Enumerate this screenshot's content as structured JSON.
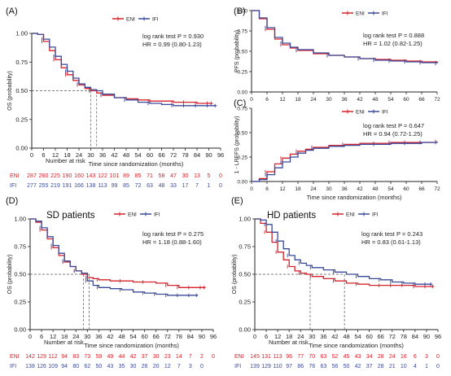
{
  "colors": {
    "eni": "#d6222b",
    "ifi": "#3a4a9b",
    "axis": "#222222",
    "ref": "#555555"
  },
  "chart_data": [
    {
      "id": "A",
      "panel_label": "(A)",
      "type": "line",
      "title": "",
      "xlabel": "Time since randomization (months)",
      "ylabel": "OS (probability)",
      "xlim": [
        0,
        96
      ],
      "ylim": [
        0,
        1
      ],
      "xticks": [
        "0",
        "6",
        "12",
        "18",
        "24",
        "30",
        "36",
        "42",
        "48",
        "54",
        "60",
        "66",
        "72",
        "78",
        "84",
        "90",
        "96"
      ],
      "yticks": [
        "0.00",
        "0.25",
        "0.50",
        "0.75",
        "1.00"
      ],
      "legend": [
        "ENI",
        "IFI"
      ],
      "legend_position": "top-right",
      "annotation": [
        "log rank test P = 0.930",
        "HR = 0.99 (0.80-1.23)"
      ],
      "medians": [
        30,
        33
      ],
      "risk_table": {
        "title": "Number at risk",
        "rows": [
          {
            "label": "ENI",
            "values": [
              "287",
              "260",
              "225",
              "190",
              "160",
              "143",
              "122",
              "101",
              "89",
              "85",
              "71",
              "58",
              "47",
              "30",
              "13",
              "5",
              "0"
            ]
          },
          {
            "label": "IFI",
            "values": [
              "277",
              "255",
              "219",
              "191",
              "166",
              "138",
              "113",
              "99",
              "85",
              "72",
              "63",
              "48",
              "33",
              "17",
              "7",
              "1",
              "0"
            ]
          }
        ]
      },
      "series": [
        {
          "name": "ENI",
          "x": [
            0,
            3,
            6,
            9,
            12,
            15,
            18,
            21,
            24,
            27,
            30,
            33,
            36,
            42,
            48,
            54,
            60,
            66,
            72,
            78,
            84,
            90,
            92
          ],
          "y": [
            1.0,
            0.99,
            0.93,
            0.85,
            0.77,
            0.7,
            0.64,
            0.59,
            0.55,
            0.52,
            0.5,
            0.48,
            0.46,
            0.44,
            0.43,
            0.42,
            0.41,
            0.41,
            0.4,
            0.4,
            0.39,
            0.39,
            0.39
          ]
        },
        {
          "name": "IFI",
          "x": [
            0,
            3,
            6,
            9,
            12,
            15,
            18,
            21,
            24,
            27,
            30,
            33,
            36,
            42,
            48,
            54,
            60,
            66,
            72,
            78,
            84,
            90,
            94
          ],
          "y": [
            1.0,
            0.99,
            0.95,
            0.88,
            0.8,
            0.73,
            0.67,
            0.61,
            0.56,
            0.53,
            0.51,
            0.5,
            0.47,
            0.44,
            0.42,
            0.4,
            0.39,
            0.38,
            0.37,
            0.37,
            0.37,
            0.37,
            0.37
          ]
        }
      ]
    },
    {
      "id": "B",
      "panel_label": "(B)",
      "type": "line",
      "title": "",
      "xlabel": "",
      "ylabel": "PFS (probability)",
      "xlim": [
        0,
        72
      ],
      "ylim": [
        0,
        1
      ],
      "xticks": [
        "0",
        "6",
        "12",
        "18",
        "24",
        "30",
        "36",
        "42",
        "48",
        "54",
        "60",
        "66",
        "72"
      ],
      "yticks": [
        "0.00",
        "0.25",
        "0.50",
        "0.75",
        "1.00"
      ],
      "legend": [
        "ENI",
        "IFI"
      ],
      "legend_position": "top-right",
      "annotation": [
        "log rank test P = 0.888",
        "HR = 1.02 (0.82-1.25)"
      ],
      "series": [
        {
          "name": "ENI",
          "x": [
            0,
            3,
            6,
            9,
            12,
            15,
            18,
            24,
            30,
            36,
            42,
            48,
            54,
            60,
            66,
            72
          ],
          "y": [
            1.0,
            0.9,
            0.77,
            0.65,
            0.58,
            0.54,
            0.51,
            0.47,
            0.45,
            0.43,
            0.41,
            0.4,
            0.39,
            0.38,
            0.37,
            0.36
          ]
        },
        {
          "name": "IFI",
          "x": [
            0,
            3,
            6,
            9,
            12,
            15,
            18,
            24,
            30,
            36,
            42,
            48,
            54,
            60,
            66,
            72
          ],
          "y": [
            1.0,
            0.91,
            0.79,
            0.67,
            0.6,
            0.55,
            0.52,
            0.48,
            0.45,
            0.43,
            0.41,
            0.39,
            0.38,
            0.37,
            0.36,
            0.35
          ]
        }
      ]
    },
    {
      "id": "C",
      "panel_label": "(C)",
      "type": "line",
      "title": "",
      "xlabel": "Time since randomization (months)",
      "ylabel": "1 - LRFFS (probability)",
      "xlim": [
        0,
        72
      ],
      "ylim": [
        0,
        0.75
      ],
      "xticks": [
        "0",
        "6",
        "12",
        "18",
        "24",
        "30",
        "36",
        "42",
        "48",
        "54",
        "60",
        "66",
        "72"
      ],
      "yticks": [
        "0.00",
        "0.25",
        "0.50",
        "0.75"
      ],
      "legend": [
        "ENI",
        "IFI"
      ],
      "legend_position": "top-left",
      "annotation": [
        "log rank test P = 0.647",
        "HR = 0.94 (0.72-1.25)"
      ],
      "series": [
        {
          "name": "ENI",
          "x": [
            0,
            3,
            6,
            9,
            12,
            15,
            18,
            21,
            24,
            30,
            36,
            42,
            48,
            54,
            60,
            66,
            72
          ],
          "y": [
            0.0,
            0.03,
            0.1,
            0.18,
            0.24,
            0.28,
            0.31,
            0.33,
            0.35,
            0.37,
            0.38,
            0.39,
            0.39,
            0.4,
            0.4,
            0.4,
            0.41
          ]
        },
        {
          "name": "IFI",
          "x": [
            0,
            3,
            6,
            9,
            12,
            15,
            18,
            21,
            24,
            30,
            36,
            42,
            48,
            54,
            60,
            66,
            72
          ],
          "y": [
            0.0,
            0.02,
            0.07,
            0.14,
            0.2,
            0.25,
            0.29,
            0.32,
            0.34,
            0.36,
            0.37,
            0.38,
            0.38,
            0.39,
            0.39,
            0.4,
            0.4
          ]
        }
      ]
    },
    {
      "id": "D",
      "panel_label": "(D)",
      "type": "line",
      "title": "SD patients",
      "xlabel": "Time since randomization (months)",
      "ylabel": "OS (probability)",
      "xlim": [
        0,
        96
      ],
      "ylim": [
        0,
        1
      ],
      "xticks": [
        "0",
        "6",
        "12",
        "18",
        "24",
        "30",
        "36",
        "42",
        "48",
        "54",
        "60",
        "66",
        "72",
        "78",
        "84",
        "90",
        "96"
      ],
      "yticks": [
        "0.00",
        "0.25",
        "0.50",
        "0.75",
        "1.00"
      ],
      "legend": [
        "ENI",
        "IFI"
      ],
      "legend_position": "top-right",
      "annotation": [
        "log rank test P = 0.275",
        "HR = 1.18 (0.88-1.60)"
      ],
      "medians": [
        28,
        31
      ],
      "risk_table": {
        "title": "Number at risk",
        "rows": [
          {
            "label": "ENI",
            "values": [
              "142",
              "129",
              "112",
              "94",
              "83",
              "73",
              "59",
              "49",
              "44",
              "42",
              "37",
              "30",
              "23",
              "14",
              "7",
              "2",
              "0"
            ]
          },
          {
            "label": "IFI",
            "values": [
              "138",
              "126",
              "109",
              "94",
              "80",
              "62",
              "50",
              "43",
              "35",
              "30",
              "26",
              "20",
              "12",
              "7",
              "3",
              "0",
              ""
            ]
          }
        ]
      },
      "series": [
        {
          "name": "ENI",
          "x": [
            0,
            3,
            6,
            9,
            12,
            15,
            18,
            21,
            24,
            27,
            30,
            33,
            36,
            42,
            48,
            54,
            60,
            66,
            72,
            78,
            84,
            90,
            92
          ],
          "y": [
            1.0,
            0.97,
            0.9,
            0.82,
            0.74,
            0.67,
            0.61,
            0.57,
            0.53,
            0.5,
            0.47,
            0.46,
            0.45,
            0.44,
            0.44,
            0.43,
            0.43,
            0.42,
            0.4,
            0.38,
            0.38,
            0.38,
            0.38
          ]
        },
        {
          "name": "IFI",
          "x": [
            0,
            3,
            6,
            9,
            12,
            15,
            18,
            21,
            24,
            27,
            30,
            33,
            36,
            42,
            48,
            54,
            60,
            66,
            72,
            78,
            84,
            88
          ],
          "y": [
            1.0,
            0.98,
            0.92,
            0.84,
            0.76,
            0.69,
            0.62,
            0.57,
            0.53,
            0.51,
            0.44,
            0.4,
            0.38,
            0.37,
            0.36,
            0.34,
            0.33,
            0.32,
            0.31,
            0.31,
            0.31,
            0.31
          ]
        }
      ]
    },
    {
      "id": "E",
      "panel_label": "(E)",
      "type": "line",
      "title": "HD patients",
      "xlabel": "Time since randomization (months)",
      "ylabel": "OS (probability)",
      "xlim": [
        0,
        96
      ],
      "ylim": [
        0,
        1
      ],
      "xticks": [
        "0",
        "6",
        "12",
        "18",
        "24",
        "30",
        "36",
        "42",
        "48",
        "54",
        "60",
        "66",
        "72",
        "78",
        "84",
        "90",
        "96"
      ],
      "yticks": [
        "0.00",
        "0.25",
        "0.50",
        "0.75",
        "1.00"
      ],
      "legend": [
        "ENI",
        "IFI"
      ],
      "legend_position": "top-right",
      "annotation": [
        "log rank test P = 0.243",
        "HR = 0.83 (0.61-1.13)"
      ],
      "medians": [
        29,
        47
      ],
      "risk_table": {
        "title": "Number at risk",
        "rows": [
          {
            "label": "ENI",
            "values": [
              "145",
              "131",
              "113",
              "96",
              "77",
              "70",
              "63",
              "52",
              "45",
              "43",
              "34",
              "28",
              "24",
              "16",
              "6",
              "3",
              "0"
            ]
          },
          {
            "label": "IFI",
            "values": [
              "139",
              "129",
              "110",
              "97",
              "86",
              "76",
              "63",
              "56",
              "50",
              "42",
              "37",
              "28",
              "21",
              "10",
              "4",
              "1",
              "0"
            ]
          }
        ]
      },
      "series": [
        {
          "name": "ENI",
          "x": [
            0,
            3,
            6,
            9,
            12,
            15,
            18,
            21,
            24,
            27,
            30,
            36,
            42,
            48,
            54,
            60,
            66,
            72,
            78,
            84,
            90,
            94
          ],
          "y": [
            1.0,
            0.96,
            0.88,
            0.79,
            0.7,
            0.63,
            0.57,
            0.53,
            0.51,
            0.5,
            0.48,
            0.46,
            0.44,
            0.42,
            0.41,
            0.4,
            0.4,
            0.4,
            0.4,
            0.39,
            0.39,
            0.39
          ]
        },
        {
          "name": "IFI",
          "x": [
            0,
            3,
            6,
            9,
            12,
            15,
            18,
            21,
            24,
            27,
            30,
            36,
            42,
            48,
            54,
            60,
            66,
            72,
            78,
            84,
            90,
            93
          ],
          "y": [
            1.0,
            0.99,
            0.95,
            0.88,
            0.8,
            0.73,
            0.67,
            0.63,
            0.6,
            0.58,
            0.56,
            0.54,
            0.52,
            0.5,
            0.48,
            0.46,
            0.45,
            0.43,
            0.42,
            0.41,
            0.41,
            0.41
          ]
        }
      ]
    }
  ]
}
